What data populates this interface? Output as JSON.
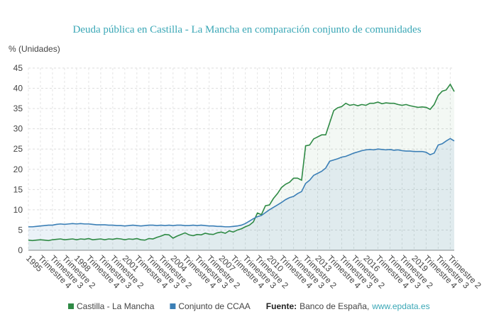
{
  "chart_data": {
    "type": "line",
    "title": "Deuda pública en Castilla - La Mancha en comparación conjunto de comunidades",
    "y_axis_label": "% (Unidades)",
    "categories": [
      "1995",
      null,
      null,
      "Trimestre 4",
      null,
      null,
      "Trimestre 3",
      null,
      null,
      "Trimestre 2",
      null,
      null,
      "1998",
      null,
      null,
      "Trimestre 4",
      null,
      null,
      "Trimestre 3",
      null,
      null,
      "Trimestre 2",
      null,
      null,
      "2001",
      null,
      null,
      "Trimestre 4",
      null,
      null,
      "Trimestre 3",
      null,
      null,
      "Trimestre 2",
      null,
      null,
      "2004",
      null,
      null,
      "Trimestre 4",
      null,
      null,
      "Trimestre 3",
      null,
      null,
      "Trimestre 2",
      null,
      null,
      "2007",
      null,
      null,
      "Trimestre 4",
      null,
      null,
      "Trimestre 3",
      null,
      null,
      "Trimestre 2",
      null,
      null,
      "2010",
      null,
      null,
      "Trimestre 4",
      null,
      null,
      "Trimestre 3",
      null,
      null,
      "Trimestre 2",
      null,
      null,
      "2013",
      null,
      null,
      "Trimestre 4",
      null,
      null,
      "Trimestre 3",
      null,
      null,
      "Trimestre 2",
      null,
      null,
      "2016",
      null,
      null,
      "Trimestre 4",
      null,
      null,
      "Trimestre 3",
      null,
      null,
      "Trimestre 2",
      null,
      null,
      "2019",
      null,
      null,
      "Trimestre 4",
      null,
      null,
      "Trimestre 3",
      null,
      null,
      "Trimestre 2",
      null
    ],
    "series": [
      {
        "name": "Castilla - La Mancha",
        "color": "#2f8a45",
        "values": [
          2.5,
          2.4,
          2.5,
          2.6,
          2.5,
          2.4,
          2.6,
          2.7,
          2.8,
          2.6,
          2.7,
          2.8,
          2.6,
          2.8,
          2.7,
          2.9,
          2.6,
          2.7,
          2.8,
          2.6,
          2.8,
          2.7,
          2.9,
          2.8,
          2.6,
          2.8,
          2.7,
          2.9,
          2.6,
          2.5,
          2.9,
          2.8,
          3.2,
          3.5,
          3.9,
          3.8,
          3.0,
          3.5,
          3.9,
          4.3,
          3.8,
          3.6,
          3.9,
          3.8,
          4.2,
          4.0,
          3.9,
          4.3,
          4.5,
          4.2,
          4.8,
          4.5,
          5.0,
          5.3,
          5.8,
          6.2,
          7.0,
          9.2,
          8.8,
          11.0,
          11.2,
          12.8,
          14.0,
          15.5,
          16.3,
          16.8,
          17.8,
          17.8,
          17.3,
          25.8,
          26.0,
          27.5,
          28.0,
          28.5,
          28.5,
          31.5,
          34.5,
          35.2,
          35.5,
          36.3,
          35.8,
          36.0,
          35.7,
          36.0,
          35.8,
          36.3,
          36.3,
          36.6,
          36.2,
          36.4,
          36.3,
          36.3,
          36.0,
          35.8,
          36.0,
          35.7,
          35.5,
          35.3,
          35.4,
          35.3,
          34.8,
          36.0,
          38.2,
          39.3,
          39.6,
          41.0,
          39.2
        ]
      },
      {
        "name": "Conjunto de CCAA",
        "color": "#3b7fb6",
        "values": [
          5.8,
          5.8,
          5.9,
          6.0,
          6.1,
          6.2,
          6.2,
          6.4,
          6.5,
          6.4,
          6.5,
          6.6,
          6.5,
          6.6,
          6.5,
          6.5,
          6.4,
          6.3,
          6.3,
          6.3,
          6.2,
          6.2,
          6.1,
          6.1,
          6.0,
          6.1,
          6.2,
          6.1,
          6.0,
          6.1,
          6.2,
          6.2,
          6.1,
          6.2,
          6.1,
          6.2,
          6.1,
          6.2,
          6.2,
          6.1,
          6.1,
          6.2,
          6.1,
          6.2,
          6.1,
          6.0,
          6.0,
          5.9,
          5.9,
          5.8,
          5.8,
          5.9,
          6.0,
          6.2,
          6.6,
          7.2,
          7.8,
          8.3,
          8.6,
          9.3,
          10.0,
          10.6,
          11.2,
          11.8,
          12.5,
          13.0,
          13.3,
          14.0,
          14.5,
          16.5,
          17.3,
          18.5,
          19.0,
          19.5,
          20.3,
          22.0,
          22.3,
          22.6,
          23.0,
          23.2,
          23.6,
          24.0,
          24.3,
          24.6,
          24.8,
          24.9,
          24.8,
          25.0,
          24.9,
          24.8,
          24.9,
          24.7,
          24.8,
          24.6,
          24.5,
          24.5,
          24.4,
          24.4,
          24.4,
          24.2,
          23.6,
          24.0,
          26.0,
          26.3,
          27.0,
          27.6,
          27.0
        ]
      }
    ],
    "ylim": [
      0,
      45
    ],
    "yticks": [
      0,
      5,
      10,
      15,
      20,
      25,
      30,
      35,
      40,
      45
    ],
    "grid": true,
    "source_label": "Fuente:",
    "source_text": "Banco de España,",
    "source_link": "www.epdata.es"
  }
}
